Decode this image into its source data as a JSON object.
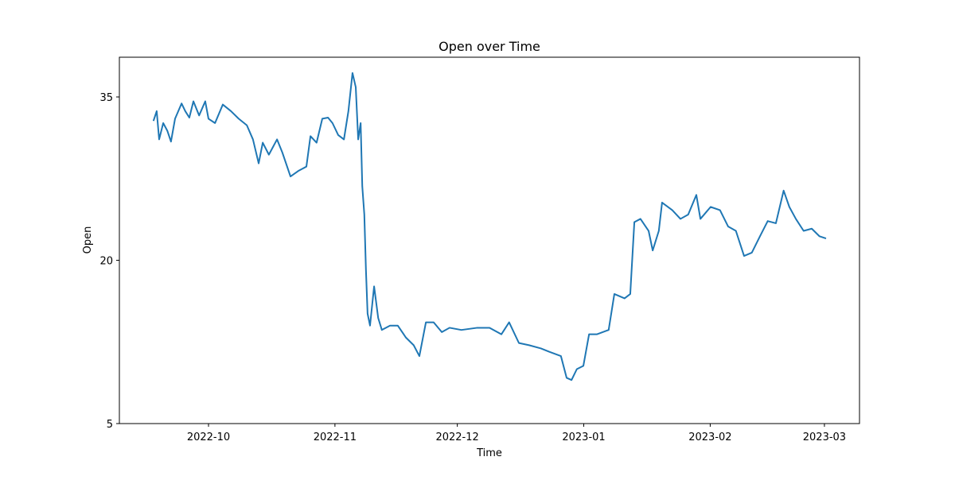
{
  "chart_data": {
    "type": "line",
    "title": "Open over Time",
    "x_label": "Time",
    "y_label": "Open",
    "x": [
      19252.5,
      19253.3,
      19253.9,
      19254.9,
      19255.9,
      19256.8,
      19257.8,
      19259.4,
      19260.3,
      19261.3,
      19262.3,
      19263.7,
      19265.2,
      19266,
      19267.6,
      19269.5,
      19271.5,
      19273.4,
      19275.4,
      19276.9,
      19278.3,
      19279.3,
      19280.8,
      19282.8,
      19284.1,
      19286.1,
      19288,
      19290,
      19291,
      19292.5,
      19293.9,
      19295.3,
      19296.4,
      19297.8,
      19299.2,
      19300.3,
      19301.3,
      19302.1,
      19302.7,
      19303.3,
      19303.7,
      19304.2,
      19304.6,
      19305,
      19305.6,
      19306.6,
      19307.6,
      19308.5,
      19310.5,
      19312.4,
      19314.4,
      19316.3,
      19317.7,
      19319.3,
      19321.2,
      19323.2,
      19325.1,
      19328,
      19331.9,
      19334.9,
      19337.8,
      19339.7,
      19342.1,
      19344.6,
      19347.5,
      19349.5,
      19352.4,
      19353.8,
      19355,
      19356.3,
      19357.9,
      19359.3,
      19361.2,
      19364.1,
      19365.5,
      19368,
      19369.4,
      19370.4,
      19371.9,
      19373.9,
      19374.9,
      19376.4,
      19377.2,
      19379.7,
      19381.7,
      19383.6,
      19385.6,
      19386.6,
      19389.1,
      19391.4,
      19393.4,
      19395.3,
      19397.3,
      19399.2,
      19401.2,
      19403.1,
      19405.1,
      19407,
      19408.4,
      19410,
      19411.9,
      19413.9,
      19415.8,
      19417.4
    ],
    "series": [
      {
        "name": "Open",
        "color": "#1f77b4",
        "values": [
          32.8,
          33.7,
          31.1,
          32.6,
          31.9,
          30.9,
          33,
          34.4,
          33.7,
          33.1,
          34.6,
          33.3,
          34.6,
          33,
          32.6,
          34.3,
          33.7,
          33,
          32.4,
          31.1,
          28.9,
          30.8,
          29.7,
          31.1,
          29.9,
          27.7,
          28.2,
          28.6,
          31.4,
          30.8,
          33,
          33.1,
          32.6,
          31.5,
          31.1,
          33.7,
          37.2,
          35.9,
          31.1,
          32.6,
          26.8,
          24.2,
          19.1,
          15.1,
          14,
          17.6,
          14.7,
          13.6,
          14,
          14,
          12.9,
          12.2,
          11.2,
          14.3,
          14.3,
          13.4,
          13.8,
          13.6,
          13.8,
          13.8,
          13.2,
          14.3,
          12.4,
          12.2,
          11.9,
          11.6,
          11.2,
          9.2,
          9,
          10,
          10.3,
          13.2,
          13.2,
          13.6,
          16.9,
          16.5,
          16.9,
          23.5,
          23.8,
          22.7,
          20.9,
          22.7,
          25.3,
          24.6,
          23.8,
          24.2,
          26,
          23.8,
          24.9,
          24.6,
          23.1,
          22.7,
          20.4,
          20.7,
          22.2,
          23.6,
          23.4,
          26.4,
          24.9,
          23.8,
          22.7,
          22.9,
          22.2,
          22
        ]
      }
    ],
    "xlim": [
      19244.15,
      19425.6
    ],
    "xticks": [
      {
        "value": 19266,
        "label": "2022-10"
      },
      {
        "value": 19297,
        "label": "2022-11"
      },
      {
        "value": 19327,
        "label": "2022-12"
      },
      {
        "value": 19358,
        "label": "2023-01"
      },
      {
        "value": 19389,
        "label": "2023-02"
      },
      {
        "value": 19417,
        "label": "2023-03"
      }
    ],
    "ylim": [
      5,
      38.65
    ],
    "yticks": [
      5,
      20,
      35
    ]
  }
}
